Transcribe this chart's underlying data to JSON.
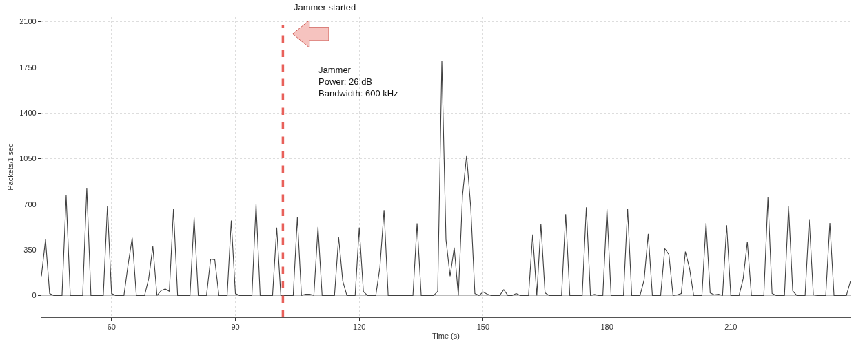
{
  "chart_data": {
    "type": "line",
    "xlabel": "Time (s)",
    "ylabel": "Packets/1 sec",
    "x": [
      43,
      44,
      45,
      46,
      47,
      48,
      49,
      50,
      51,
      52,
      53,
      54,
      55,
      56,
      57,
      58,
      59,
      60,
      61,
      62,
      63,
      64,
      65,
      66,
      67,
      68,
      69,
      70,
      71,
      72,
      73,
      74,
      75,
      76,
      77,
      78,
      79,
      80,
      81,
      82,
      83,
      84,
      85,
      86,
      87,
      88,
      89,
      90,
      91,
      92,
      93,
      94,
      95,
      96,
      97,
      98,
      99,
      100,
      101,
      102,
      103,
      104,
      105,
      106,
      107,
      108,
      109,
      110,
      111,
      112,
      113,
      114,
      115,
      116,
      117,
      118,
      119,
      120,
      121,
      122,
      123,
      124,
      125,
      126,
      127,
      128,
      129,
      130,
      131,
      132,
      133,
      134,
      135,
      136,
      137,
      138,
      139,
      140,
      141,
      142,
      143,
      144,
      145,
      146,
      147,
      148,
      149,
      150,
      151,
      152,
      153,
      154,
      155,
      156,
      157,
      158,
      159,
      160,
      161,
      162,
      163,
      164,
      165,
      166,
      167,
      168,
      169,
      170,
      171,
      172,
      173,
      174,
      175,
      176,
      177,
      178,
      179,
      180,
      181,
      182,
      183,
      184,
      185,
      186,
      187,
      188,
      189,
      190,
      191,
      192,
      193,
      194,
      195,
      196,
      197,
      198,
      199,
      200,
      201,
      202,
      203,
      204,
      205,
      206,
      207,
      208,
      209,
      210,
      211,
      212,
      213,
      214,
      215,
      216,
      217,
      218,
      219,
      220,
      221,
      222,
      223,
      224,
      225,
      226,
      227,
      228,
      229,
      230,
      231,
      232,
      233,
      234,
      235,
      236,
      237,
      238,
      239
    ],
    "series": [
      {
        "color": "#404040",
        "values": [
          147,
          429,
          15,
          0,
          0,
          0,
          768,
          0,
          0,
          0,
          0,
          826,
          0,
          0,
          0,
          0,
          685,
          15,
          0,
          0,
          0,
          235,
          442,
          0,
          0,
          0,
          129,
          376,
          0,
          37,
          50,
          32,
          662,
          0,
          0,
          0,
          0,
          597,
          0,
          0,
          0,
          279,
          274,
          0,
          0,
          0,
          574,
          15,
          0,
          0,
          0,
          0,
          703,
          0,
          0,
          0,
          0,
          521,
          0,
          0,
          0,
          0,
          600,
          0,
          10,
          10,
          0,
          526,
          0,
          0,
          0,
          0,
          447,
          111,
          0,
          0,
          0,
          521,
          30,
          0,
          0,
          0,
          217,
          655,
          0,
          0,
          0,
          0,
          0,
          0,
          0,
          553,
          0,
          0,
          0,
          0,
          32,
          1800,
          429,
          147,
          367,
          0,
          765,
          1074,
          676,
          15,
          0,
          27,
          10,
          0,
          0,
          0,
          45,
          0,
          0,
          15,
          0,
          0,
          0,
          468,
          0,
          549,
          20,
          0,
          0,
          0,
          0,
          623,
          0,
          0,
          0,
          0,
          676,
          0,
          8,
          0,
          0,
          662,
          0,
          0,
          0,
          0,
          667,
          0,
          0,
          0,
          120,
          473,
          0,
          0,
          0,
          359,
          315,
          0,
          5,
          15,
          337,
          209,
          0,
          0,
          0,
          556,
          20,
          5,
          10,
          0,
          539,
          0,
          0,
          0,
          129,
          412,
          0,
          0,
          0,
          0,
          751,
          15,
          0,
          0,
          0,
          685,
          35,
          0,
          0,
          0,
          585,
          5,
          0,
          0,
          0,
          556,
          0,
          0,
          0,
          0,
          111
        ]
      }
    ],
    "xlim": [
      43,
      239
    ],
    "xticks": [
      60,
      90,
      120,
      150,
      180,
      210
    ],
    "ylim": [
      -167,
      2140
    ],
    "yticks": [
      0,
      350,
      700,
      1050,
      1400,
      1750,
      2100
    ],
    "grid": true,
    "marker": "none",
    "line_style": "solid",
    "ref_lines": [
      {
        "axis": "x",
        "value": 101.5,
        "label": "Jammer started",
        "color": "#e8605a",
        "line_style": "dashed"
      }
    ],
    "annotations": [
      "Jammer\nPower: 26 dB\nBandwidth: 600 kHz"
    ]
  }
}
